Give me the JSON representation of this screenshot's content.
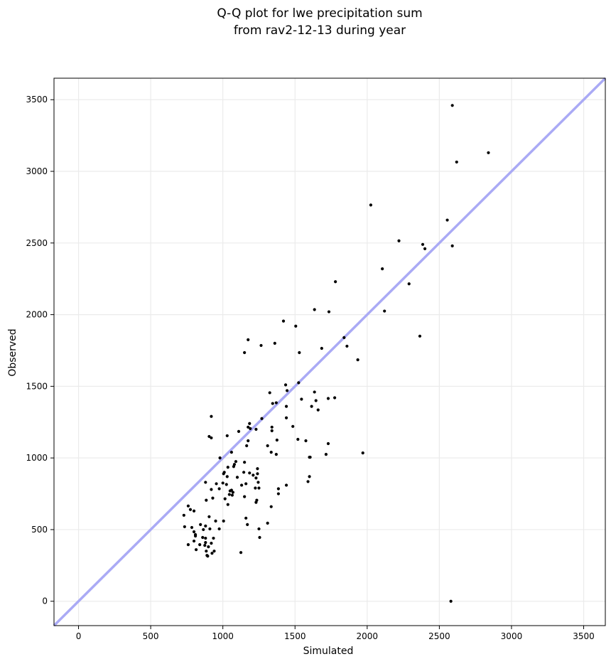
{
  "chart_data": {
    "type": "scatter",
    "title_lines": [
      "Q-Q plot for lwe precipitation sum",
      "from rav2-12-13 during year"
    ],
    "xlabel": "Simulated",
    "ylabel": "Observed",
    "xlim": [
      -170,
      3650
    ],
    "ylim": [
      -170,
      3650
    ],
    "xticks": [
      0,
      500,
      1000,
      1500,
      2000,
      2500,
      3000,
      3500
    ],
    "yticks": [
      0,
      500,
      1000,
      1500,
      2000,
      2500,
      3000,
      3500
    ],
    "grid": true,
    "reference_line": {
      "from": [
        -170,
        -170
      ],
      "to": [
        3650,
        3650
      ],
      "color": "#aaaaf5"
    },
    "point_color": "#000000",
    "points": [
      [
        2590,
        3460
      ],
      [
        2840,
        3130
      ],
      [
        2620,
        3065
      ],
      [
        2025,
        2765
      ],
      [
        2555,
        2660
      ],
      [
        2220,
        2515
      ],
      [
        2385,
        2490
      ],
      [
        2400,
        2460
      ],
      [
        2590,
        2480
      ],
      [
        2105,
        2320
      ],
      [
        1780,
        2230
      ],
      [
        2290,
        2215
      ],
      [
        1635,
        2035
      ],
      [
        1735,
        2020
      ],
      [
        2120,
        2025
      ],
      [
        1420,
        1955
      ],
      [
        1505,
        1920
      ],
      [
        2365,
        1850
      ],
      [
        1175,
        1825
      ],
      [
        1840,
        1840
      ],
      [
        1360,
        1800
      ],
      [
        1265,
        1785
      ],
      [
        1860,
        1780
      ],
      [
        1685,
        1765
      ],
      [
        1150,
        1735
      ],
      [
        1530,
        1735
      ],
      [
        1935,
        1685
      ],
      [
        1525,
        1525
      ],
      [
        1435,
        1510
      ],
      [
        1445,
        1470
      ],
      [
        1325,
        1455
      ],
      [
        1635,
        1460
      ],
      [
        1345,
        1380
      ],
      [
        1545,
        1410
      ],
      [
        1370,
        1385
      ],
      [
        1645,
        1400
      ],
      [
        1730,
        1415
      ],
      [
        1775,
        1420
      ],
      [
        1440,
        1360
      ],
      [
        1615,
        1360
      ],
      [
        1660,
        1335
      ],
      [
        920,
        1290
      ],
      [
        1270,
        1275
      ],
      [
        1440,
        1280
      ],
      [
        1185,
        1240
      ],
      [
        1175,
        1215
      ],
      [
        1190,
        1205
      ],
      [
        1340,
        1215
      ],
      [
        1340,
        1190
      ],
      [
        1485,
        1220
      ],
      [
        1230,
        1200
      ],
      [
        1110,
        1185
      ],
      [
        905,
        1150
      ],
      [
        920,
        1140
      ],
      [
        1030,
        1155
      ],
      [
        1175,
        1120
      ],
      [
        1375,
        1125
      ],
      [
        1520,
        1130
      ],
      [
        1575,
        1120
      ],
      [
        1730,
        1100
      ],
      [
        1165,
        1085
      ],
      [
        1310,
        1085
      ],
      [
        1060,
        1040
      ],
      [
        1335,
        1040
      ],
      [
        1370,
        1025
      ],
      [
        980,
        1000
      ],
      [
        1600,
        1005
      ],
      [
        1605,
        1005
      ],
      [
        1715,
        1025
      ],
      [
        1970,
        1035
      ],
      [
        1090,
        975
      ],
      [
        1150,
        970
      ],
      [
        1080,
        955
      ],
      [
        1240,
        925
      ],
      [
        1035,
        935
      ],
      [
        1075,
        940
      ],
      [
        1010,
        900
      ],
      [
        1145,
        900
      ],
      [
        1185,
        895
      ],
      [
        1210,
        880
      ],
      [
        1240,
        890
      ],
      [
        1005,
        890
      ],
      [
        1030,
        870
      ],
      [
        1100,
        865
      ],
      [
        1230,
        860
      ],
      [
        1600,
        870
      ],
      [
        1590,
        835
      ],
      [
        1245,
        830
      ],
      [
        1000,
        825
      ],
      [
        1160,
        820
      ],
      [
        1025,
        815
      ],
      [
        880,
        830
      ],
      [
        955,
        820
      ],
      [
        1130,
        810
      ],
      [
        1060,
        775
      ],
      [
        1250,
        790
      ],
      [
        1385,
        785
      ],
      [
        1440,
        810
      ],
      [
        1225,
        790
      ],
      [
        975,
        785
      ],
      [
        920,
        780
      ],
      [
        1050,
        770
      ],
      [
        1070,
        760
      ],
      [
        1045,
        745
      ],
      [
        1065,
        740
      ],
      [
        1150,
        730
      ],
      [
        1385,
        750
      ],
      [
        930,
        720
      ],
      [
        1015,
        715
      ],
      [
        885,
        705
      ],
      [
        1235,
        705
      ],
      [
        1230,
        690
      ],
      [
        1335,
        660
      ],
      [
        1035,
        675
      ],
      [
        760,
        665
      ],
      [
        730,
        600
      ],
      [
        775,
        640
      ],
      [
        800,
        630
      ],
      [
        905,
        590
      ],
      [
        950,
        560
      ],
      [
        1005,
        560
      ],
      [
        1160,
        580
      ],
      [
        1310,
        545
      ],
      [
        845,
        535
      ],
      [
        880,
        525
      ],
      [
        975,
        505
      ],
      [
        1170,
        535
      ],
      [
        735,
        520
      ],
      [
        785,
        515
      ],
      [
        1250,
        505
      ],
      [
        865,
        500
      ],
      [
        910,
        505
      ],
      [
        800,
        485
      ],
      [
        810,
        465
      ],
      [
        810,
        455
      ],
      [
        860,
        445
      ],
      [
        880,
        440
      ],
      [
        935,
        440
      ],
      [
        1255,
        445
      ],
      [
        800,
        420
      ],
      [
        880,
        410
      ],
      [
        920,
        405
      ],
      [
        760,
        395
      ],
      [
        840,
        395
      ],
      [
        875,
        390
      ],
      [
        900,
        380
      ],
      [
        815,
        360
      ],
      [
        885,
        350
      ],
      [
        940,
        350
      ],
      [
        890,
        320
      ],
      [
        895,
        315
      ],
      [
        925,
        335
      ],
      [
        1125,
        340
      ],
      [
        2580,
        0
      ]
    ]
  }
}
